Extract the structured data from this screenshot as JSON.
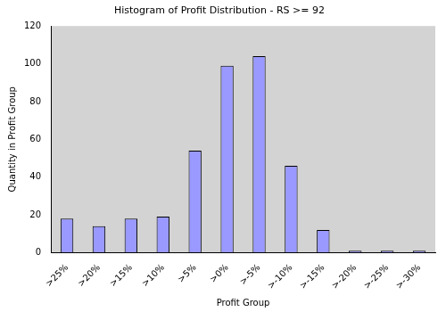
{
  "chart_data": {
    "type": "bar",
    "title": "Histogram of Profit Distribution - RS >= 92",
    "x_label": "Profit Group",
    "y_label": "Quantity in Profit Group",
    "categories": [
      ">25%",
      ">20%",
      ">15%",
      ">10%",
      ">5%",
      ">0%",
      ">-5%",
      ">-10%",
      ">-15%",
      ">-20%",
      ">-25%",
      ">-30%"
    ],
    "values": [
      18,
      14,
      18,
      19,
      54,
      99,
      104,
      46,
      12,
      1,
      1,
      1
    ],
    "color": "#9999ff",
    "ylim": [
      0,
      120
    ],
    "yticks": [
      0,
      20,
      40,
      60,
      80,
      100,
      120
    ],
    "grid": false
  }
}
